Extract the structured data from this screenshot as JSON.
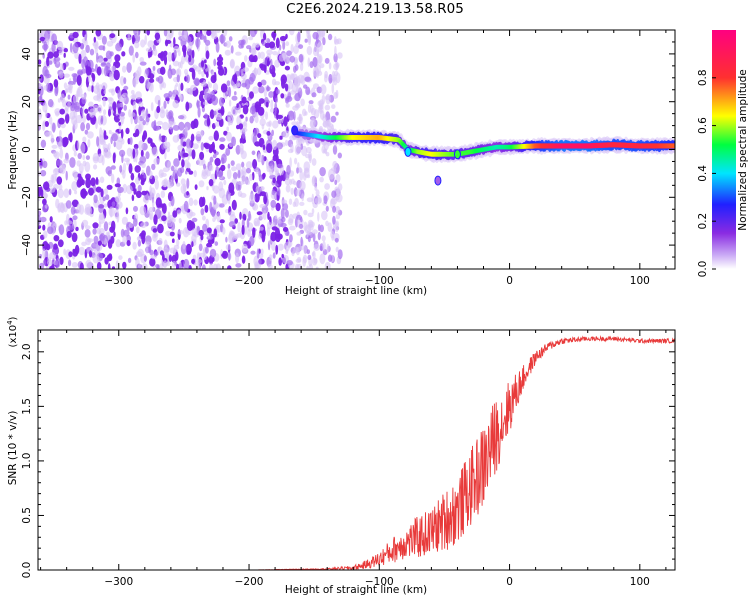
{
  "title": "C2E6.2024.219.13.58.R05",
  "chart_data": [
    {
      "type": "heatmap",
      "xlabel": "Height of straight line (km)",
      "ylabel": "Frequency (Hz)",
      "xlim": [
        -362,
        127
      ],
      "ylim": [
        -50,
        50
      ],
      "xticks": [
        -300,
        -200,
        -100,
        0,
        100
      ],
      "yticks": [
        -40,
        -20,
        0,
        20,
        40
      ],
      "colorbar": {
        "label": "Normalized spectral amplitude",
        "range": [
          0.0,
          1.0
        ],
        "ticks": [
          "0.0",
          "0.2",
          "0.4",
          "0.6",
          "0.8"
        ],
        "colormap": [
          "#ffffff",
          "#c9a8f5",
          "#8a2be2",
          "#2020ff",
          "#00e5ff",
          "#00ff40",
          "#ffff00",
          "#ff3030",
          "#ff0080"
        ]
      },
      "noise_region_x": [
        -362,
        -136
      ],
      "ridge": {
        "x": [
          -165,
          -140,
          -120,
          -100,
          -85,
          -78,
          -70,
          -60,
          -50,
          -40,
          -30,
          -20,
          -10,
          0,
          20,
          40,
          60,
          80,
          100,
          127
        ],
        "freq": [
          7,
          5,
          5,
          5,
          4,
          0,
          -1,
          -2,
          -2,
          -2,
          -1,
          0,
          1,
          1,
          1.5,
          1.5,
          1.5,
          2,
          1.5,
          1.5
        ],
        "amplitude": [
          0.35,
          0.55,
          0.75,
          0.8,
          0.7,
          0.55,
          0.7,
          0.75,
          0.7,
          0.65,
          0.65,
          0.6,
          0.55,
          0.6,
          0.85,
          0.95,
          0.95,
          0.9,
          0.9,
          0.85
        ]
      }
    },
    {
      "type": "line",
      "xlabel": "Height of straight line (km)",
      "ylabel": "SNR (10 * v/v)",
      "scale_note": "(x10",
      "scale_exp": "4",
      "scale_close": ")",
      "color": "#e83a3a",
      "xlim": [
        -362,
        127
      ],
      "ylim": [
        0,
        2.2
      ],
      "xticks": [
        -300,
        -200,
        -100,
        0,
        100
      ],
      "yticks": [
        0.0,
        0.5,
        1.0,
        1.5,
        2.0
      ],
      "series": [
        {
          "x": [
            -362,
            -300,
            -200,
            -140,
            -120,
            -110,
            -100,
            -90,
            -80,
            -70,
            -60,
            -50,
            -40,
            -30,
            -20,
            -10,
            0,
            10,
            20,
            30,
            40,
            60,
            80,
            100,
            127
          ],
          "y": [
            0.0,
            0.0,
            0.0,
            0.01,
            0.02,
            0.05,
            0.1,
            0.18,
            0.25,
            0.3,
            0.35,
            0.45,
            0.55,
            0.75,
            0.95,
            1.25,
            1.5,
            1.75,
            1.95,
            2.05,
            2.1,
            2.12,
            2.12,
            2.1,
            2.1
          ],
          "noise": [
            0.0,
            0.0,
            0.0,
            0.005,
            0.02,
            0.04,
            0.07,
            0.12,
            0.15,
            0.2,
            0.22,
            0.28,
            0.32,
            0.35,
            0.4,
            0.35,
            0.25,
            0.12,
            0.06,
            0.04,
            0.03,
            0.02,
            0.02,
            0.02,
            0.02
          ]
        }
      ]
    }
  ]
}
